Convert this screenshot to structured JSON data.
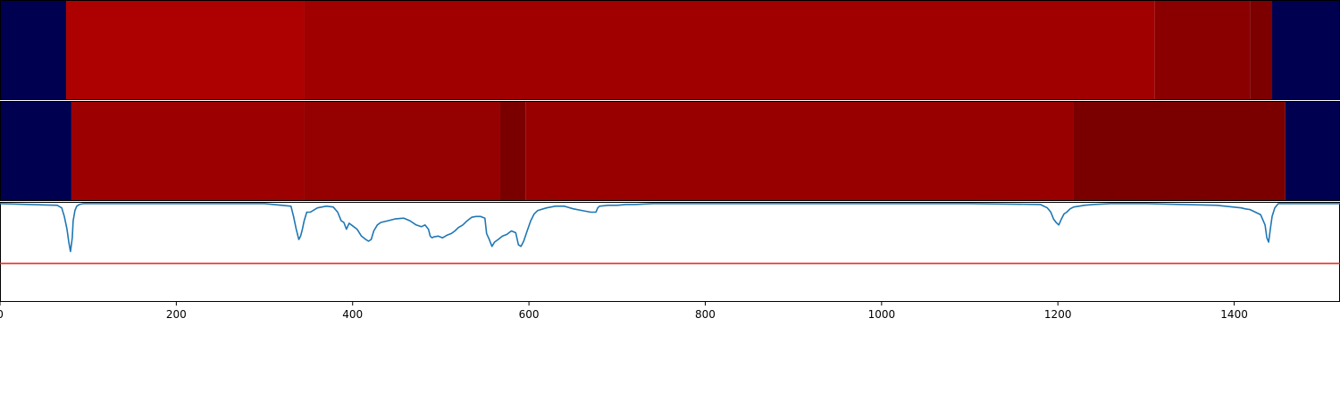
{
  "chart_data": {
    "type": "heatmap",
    "xlim": [
      0,
      1520
    ],
    "x_ticks": [
      0,
      200,
      400,
      600,
      800,
      1000,
      1200,
      1400
    ],
    "x_tick_labels": [
      "0",
      "200",
      "400",
      "600",
      "800",
      "1000",
      "1200",
      "1400"
    ],
    "grid": false,
    "legend": "none",
    "tracks": [
      {
        "segments": [
          {
            "start": 0,
            "end": 75,
            "color": "#000050"
          },
          {
            "start": 75,
            "end": 345,
            "color": "#ad0000"
          },
          {
            "start": 345,
            "end": 1310,
            "color": "#a00000"
          },
          {
            "start": 1310,
            "end": 1418,
            "color": "#8a0000"
          },
          {
            "start": 1418,
            "end": 1443,
            "color": "#7c0000"
          },
          {
            "start": 1443,
            "end": 1520,
            "color": "#000050"
          }
        ]
      },
      {
        "segments": [
          {
            "start": 0,
            "end": 81,
            "color": "#000050"
          },
          {
            "start": 81,
            "end": 345,
            "color": "#9d0000"
          },
          {
            "start": 345,
            "end": 567,
            "color": "#950000"
          },
          {
            "start": 567,
            "end": 596,
            "color": "#7a0000"
          },
          {
            "start": 596,
            "end": 1218,
            "color": "#980000"
          },
          {
            "start": 1218,
            "end": 1458,
            "color": "#7a0000"
          },
          {
            "start": 1458,
            "end": 1520,
            "color": "#000050"
          }
        ]
      }
    ],
    "line_panel": {
      "ylim": [
        -1.15,
        0.02
      ],
      "threshold": -0.7,
      "threshold_color": "#e8201a",
      "line_color": "#1f77b4",
      "series": {
        "x": [
          0,
          65,
          70,
          73,
          76,
          78,
          80,
          82,
          83,
          85,
          87,
          90,
          95,
          100,
          200,
          300,
          330,
          333,
          336,
          339,
          341,
          343,
          345,
          348,
          352,
          360,
          370,
          378,
          383,
          387,
          390,
          393,
          396,
          400,
          405,
          410,
          415,
          418,
          421,
          424,
          428,
          432,
          440,
          448,
          458,
          465,
          472,
          478,
          482,
          486,
          488,
          490,
          492,
          497,
          502,
          507,
          512,
          516,
          520,
          525,
          530,
          535,
          540,
          545,
          550,
          552,
          555,
          558,
          561,
          565,
          570,
          575,
          580,
          585,
          588,
          591,
          594,
          598,
          602,
          606,
          610,
          620,
          630,
          640,
          650,
          660,
          670,
          676,
          678,
          680,
          690,
          700,
          710,
          720,
          740,
          760,
          800,
          900,
          1000,
          1100,
          1180,
          1188,
          1192,
          1195,
          1198,
          1201,
          1204,
          1207,
          1210,
          1214,
          1218,
          1224,
          1230,
          1240,
          1260,
          1300,
          1380,
          1408,
          1412,
          1418,
          1424,
          1430,
          1435,
          1437,
          1439,
          1441,
          1443,
          1446,
          1450,
          1520
        ],
        "y": [
          0,
          -0.02,
          -0.05,
          -0.15,
          -0.3,
          -0.45,
          -0.56,
          -0.4,
          -0.2,
          -0.08,
          -0.03,
          -0.01,
          0,
          0,
          0,
          0,
          -0.03,
          -0.15,
          -0.3,
          -0.42,
          -0.38,
          -0.3,
          -0.2,
          -0.1,
          -0.1,
          -0.05,
          -0.03,
          -0.04,
          -0.1,
          -0.2,
          -0.22,
          -0.3,
          -0.23,
          -0.26,
          -0.3,
          -0.38,
          -0.42,
          -0.44,
          -0.42,
          -0.32,
          -0.25,
          -0.22,
          -0.2,
          -0.18,
          -0.17,
          -0.2,
          -0.25,
          -0.27,
          -0.25,
          -0.3,
          -0.38,
          -0.4,
          -0.39,
          -0.38,
          -0.4,
          -0.37,
          -0.35,
          -0.32,
          -0.28,
          -0.25,
          -0.2,
          -0.16,
          -0.15,
          -0.15,
          -0.17,
          -0.35,
          -0.42,
          -0.5,
          -0.45,
          -0.42,
          -0.38,
          -0.36,
          -0.32,
          -0.34,
          -0.48,
          -0.5,
          -0.44,
          -0.32,
          -0.2,
          -0.12,
          -0.08,
          -0.05,
          -0.03,
          -0.03,
          -0.06,
          -0.08,
          -0.1,
          -0.1,
          -0.05,
          -0.03,
          -0.02,
          -0.02,
          -0.01,
          -0.01,
          0,
          0,
          0,
          0,
          0,
          0,
          -0.01,
          -0.05,
          -0.1,
          -0.18,
          -0.22,
          -0.25,
          -0.18,
          -0.12,
          -0.1,
          -0.06,
          -0.04,
          -0.03,
          -0.02,
          -0.01,
          0,
          0,
          -0.02,
          -0.05,
          -0.06,
          -0.07,
          -0.1,
          -0.13,
          -0.25,
          -0.4,
          -0.45,
          -0.3,
          -0.15,
          -0.05,
          0,
          0
        ]
      }
    }
  }
}
